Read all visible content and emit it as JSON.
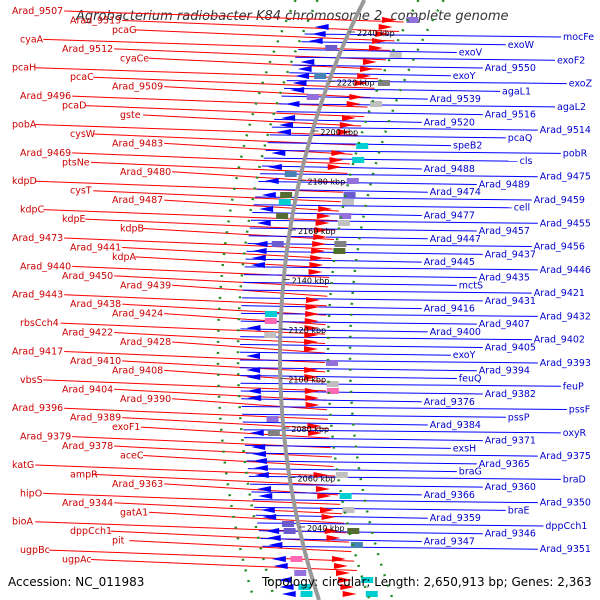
{
  "title": "Agrobacterium radiobacter K84 chromosome 2, complete genome",
  "accession": "Accession: NC_011983",
  "summary": "Topology: circular; Length: 2,650,913 bp; Genes: 2,363",
  "colors": {
    "forward_genes": "#ff0000",
    "reverse_genes": "#0000ff",
    "forward_labels": "#cc0000",
    "reverse_labels": "#0000cc",
    "backbone": "#999999",
    "dots": "#228b22"
  },
  "kbp_ticks": [
    "2240 kbp",
    "2220 kbp",
    "2200 kbp",
    "2180 kbp",
    "2160 kbp",
    "2140 kbp",
    "2120 kbp",
    "2100 kbp",
    "2080 kbp",
    "2060 kbp",
    "2040 kbp"
  ],
  "left_labels": [
    "Arad_9507",
    "Arad_9513",
    "pcaG",
    "cyaA",
    "Arad_9512",
    "cyaCe",
    "pcaH",
    "pcaC",
    "Arad_9509",
    "Arad_9496",
    "pcaD",
    "gste",
    "pobA",
    "cysW",
    "Arad_9483",
    "Arad_9469",
    "ptsNe",
    "Arad_9480",
    "kdpD",
    "cysT",
    "Arad_9487",
    "kdpC",
    "kdpE",
    "kdpB",
    "Arad_9473",
    "Arad_9441",
    "kdpA",
    "Arad_9440",
    "Arad_9450",
    "Arad_9439",
    "Arad_9443",
    "Arad_9438",
    "Arad_9424",
    "rbsCch4",
    "Arad_9422",
    "Arad_9428",
    "Arad_9417",
    "Arad_9410",
    "Arad_9408",
    "vbsS",
    "Arad_9404",
    "Arad_9390",
    "Arad_9396",
    "Arad_9389",
    "exoF1",
    "Arad_9379",
    "Arad_9378",
    "aceC",
    "katG",
    "ampR",
    "Arad_9363",
    "hipO",
    "Arad_9344",
    "gatA1",
    "bioA",
    "dppCch1",
    "pit",
    "ugpBc",
    "ugpAc"
  ],
  "right_labels": [
    "mocFe",
    "exoW",
    "exoV",
    "exoF2",
    "Arad_9550",
    "exoY",
    "exoZ",
    "agaL1",
    "Arad_9539",
    "agaL2",
    "Arad_9516",
    "Arad_9520",
    "Arad_9514",
    "pcaQ",
    "speB2",
    "pobR",
    "cls",
    "Arad_9488",
    "Arad_9475",
    "Arad_9489",
    "Arad_9474",
    "Arad_9459",
    "cell",
    "Arad_9477",
    "Arad_9455",
    "Arad_9457",
    "Arad_9447",
    "Arad_9456",
    "Arad_9437",
    "Arad_9445",
    "Arad_9446",
    "Arad_9435",
    "mctS",
    "Arad_9421",
    "Arad_9431",
    "Arad_9416",
    "Arad_9432",
    "Arad_9407",
    "Arad_9400",
    "Arad_9402",
    "Arad_9405",
    "exoY",
    "Arad_9393",
    "Arad_9394",
    "feuQ",
    "feuP",
    "Arad_9382",
    "Arad_9376",
    "pssF",
    "pssP",
    "Arad_9384",
    "oxyR",
    "Arad_9371",
    "exsH",
    "Arad_9375",
    "Arad_9365",
    "braG",
    "braD",
    "Arad_9360",
    "Arad_9366",
    "Arad_9350",
    "braE",
    "Arad_9359",
    "dppCch1",
    "Arad_9346",
    "Arad_9347",
    "Arad_9351"
  ]
}
